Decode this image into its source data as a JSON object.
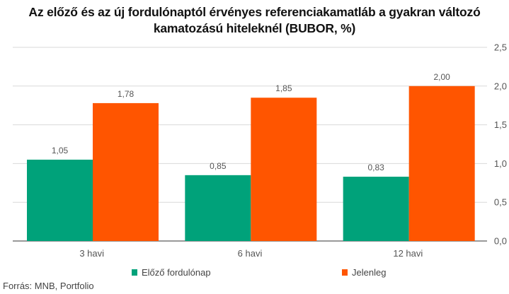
{
  "chart_data": {
    "type": "bar",
    "title": "Az előző és az új fordulónaptól érvényes referenciakamatláb a gyakran változó kamatozású hiteleknél (BUBOR, %)",
    "categories": [
      "3 havi",
      "6 havi",
      "12 havi"
    ],
    "series": [
      {
        "name": "Előző fordulónap",
        "values": [
          1.05,
          0.85,
          0.83
        ],
        "labels": [
          "1,05",
          "0,85",
          "0,83"
        ],
        "color": "#00A27A"
      },
      {
        "name": "Jelenleg",
        "values": [
          1.78,
          1.85,
          2.0
        ],
        "labels": [
          "1,78",
          "1,85",
          "2,00"
        ],
        "color": "#FF5500"
      }
    ],
    "ylim": [
      0,
      2.5
    ],
    "yticks": [
      0,
      0.5,
      1.0,
      1.5,
      2.0,
      2.5
    ],
    "ytick_labels": [
      "0,0",
      "0,5",
      "1,0",
      "1,5",
      "2,0",
      "2,5"
    ],
    "y_axis_side": "right",
    "grid": true,
    "legend_position": "bottom",
    "source": "Forrás: MNB, Portfolio"
  }
}
